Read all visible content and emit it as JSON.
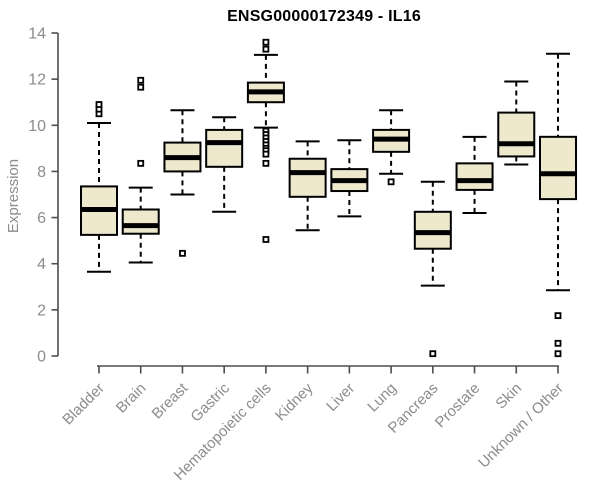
{
  "title": "ENSG00000172349 - IL16",
  "colors": {
    "background": "#ffffff",
    "box_fill": "#eee8cd",
    "box_border": "#000000",
    "median": "#000000",
    "whisker": "#000000",
    "axis_line": "#4d4d4d",
    "axis_text": "#8c8c8c",
    "title_text": "#000000",
    "outlier": "#000000"
  },
  "chart_data": {
    "type": "boxplot",
    "title": "ENSG00000172349 - IL16",
    "xlabel": "",
    "ylabel": "Expression",
    "ylim": [
      0,
      14
    ],
    "yticks": [
      0,
      2,
      4,
      6,
      8,
      10,
      12,
      14
    ],
    "grid": false,
    "legend": "none",
    "categories": [
      "Bladder",
      "Brain",
      "Breast",
      "Gastric",
      "Hematopoietic cells",
      "Kidney",
      "Liver",
      "Lung",
      "Pancreas",
      "Prostate",
      "Skin",
      "Unknown / Other"
    ],
    "series": [
      {
        "name": "Bladder",
        "low": 3.65,
        "q1": 5.25,
        "median": 6.35,
        "q3": 7.35,
        "high": 10.1,
        "outliers": [
          10.5,
          10.7,
          10.9
        ]
      },
      {
        "name": "Brain",
        "low": 4.05,
        "q1": 5.3,
        "median": 5.65,
        "q3": 6.35,
        "high": 7.3,
        "outliers": [
          8.35,
          11.65,
          11.95
        ]
      },
      {
        "name": "Breast",
        "low": 7.0,
        "q1": 8.0,
        "median": 8.6,
        "q3": 9.25,
        "high": 10.65,
        "outliers": [
          4.45
        ]
      },
      {
        "name": "Gastric",
        "low": 6.25,
        "q1": 8.2,
        "median": 9.25,
        "q3": 9.8,
        "high": 10.35,
        "outliers": []
      },
      {
        "name": "Hematopoietic cells",
        "low": 9.9,
        "q1": 11.0,
        "median": 11.45,
        "q3": 11.85,
        "high": 13.05,
        "outliers": [
          13.6,
          13.3,
          9.75,
          9.6,
          9.45,
          9.3,
          9.15,
          9.0,
          8.9,
          8.75,
          8.35,
          5.05
        ]
      },
      {
        "name": "Kidney",
        "low": 5.45,
        "q1": 6.9,
        "median": 7.95,
        "q3": 8.55,
        "high": 9.3,
        "outliers": []
      },
      {
        "name": "Liver",
        "low": 6.05,
        "q1": 7.15,
        "median": 7.6,
        "q3": 8.1,
        "high": 9.35,
        "outliers": []
      },
      {
        "name": "Lung",
        "low": 7.9,
        "q1": 8.85,
        "median": 9.4,
        "q3": 9.8,
        "high": 10.65,
        "outliers": [
          7.55
        ]
      },
      {
        "name": "Pancreas",
        "low": 3.05,
        "q1": 4.65,
        "median": 5.35,
        "q3": 6.25,
        "high": 7.55,
        "outliers": [
          0.1
        ]
      },
      {
        "name": "Prostate",
        "low": 6.2,
        "q1": 7.2,
        "median": 7.6,
        "q3": 8.35,
        "high": 9.5,
        "outliers": []
      },
      {
        "name": "Skin",
        "low": 8.3,
        "q1": 8.65,
        "median": 9.2,
        "q3": 10.55,
        "high": 11.9,
        "outliers": []
      },
      {
        "name": "Unknown / Other",
        "low": 2.85,
        "q1": 6.8,
        "median": 7.9,
        "q3": 9.5,
        "high": 13.1,
        "outliers": [
          1.75,
          0.55,
          0.1
        ]
      }
    ]
  }
}
